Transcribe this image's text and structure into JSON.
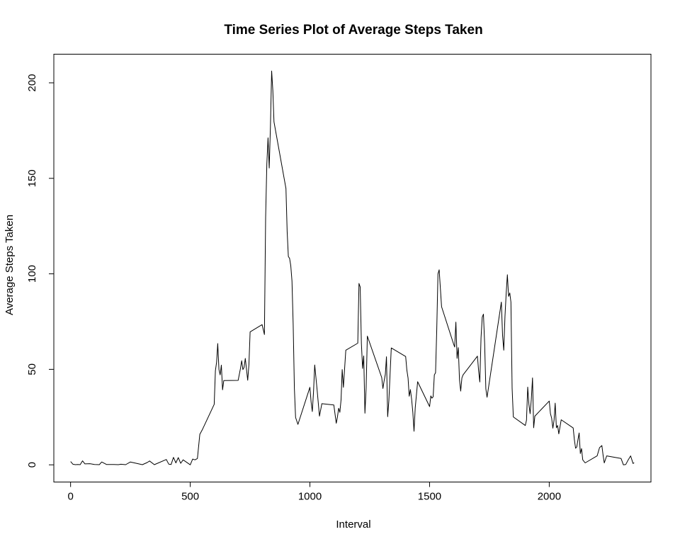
{
  "chart_data": {
    "type": "line",
    "title": "Time Series Plot of Average Steps Taken",
    "xlabel": "Interval",
    "ylabel": "Average Steps Taken",
    "xlim": [
      -70,
      2425
    ],
    "ylim": [
      -9,
      215
    ],
    "x_ticks": [
      0,
      500,
      1000,
      1500,
      2000
    ],
    "y_ticks": [
      0,
      50,
      100,
      150,
      200
    ],
    "grid": false,
    "series": [
      {
        "color": "#000000",
        "x": [
          0,
          10,
          20,
          30,
          40,
          50,
          60,
          80,
          100,
          120,
          130,
          150,
          180,
          200,
          210,
          230,
          250,
          300,
          320,
          330,
          350,
          400,
          410,
          420,
          430,
          440,
          450,
          460,
          470,
          500,
          510,
          520,
          530,
          540,
          550,
          600,
          605,
          610,
          615,
          620,
          625,
          630,
          635,
          640,
          700,
          710,
          715,
          720,
          725,
          730,
          740,
          745,
          750,
          800,
          810,
          815,
          820,
          825,
          830,
          835,
          840,
          845,
          850,
          900,
          905,
          910,
          915,
          920,
          925,
          930,
          935,
          940,
          950,
          1000,
          1005,
          1010,
          1015,
          1020,
          1030,
          1040,
          1050,
          1100,
          1110,
          1115,
          1120,
          1125,
          1130,
          1135,
          1140,
          1150,
          1200,
          1205,
          1210,
          1215,
          1220,
          1225,
          1230,
          1235,
          1240,
          1300,
          1305,
          1310,
          1315,
          1320,
          1325,
          1330,
          1335,
          1340,
          1400,
          1405,
          1410,
          1415,
          1420,
          1425,
          1430,
          1435,
          1440,
          1450,
          1500,
          1505,
          1510,
          1515,
          1520,
          1525,
          1530,
          1535,
          1540,
          1550,
          1600,
          1605,
          1610,
          1615,
          1620,
          1625,
          1630,
          1635,
          1640,
          1700,
          1705,
          1710,
          1715,
          1720,
          1725,
          1730,
          1735,
          1740,
          1800,
          1805,
          1810,
          1815,
          1820,
          1825,
          1830,
          1835,
          1840,
          1845,
          1850,
          1900,
          1905,
          1910,
          1915,
          1920,
          1925,
          1930,
          1935,
          1940,
          2000,
          2005,
          2010,
          2015,
          2020,
          2025,
          2030,
          2035,
          2040,
          2050,
          2100,
          2105,
          2110,
          2115,
          2120,
          2125,
          2130,
          2135,
          2140,
          2150,
          2200,
          2210,
          2220,
          2225,
          2230,
          2240,
          2300,
          2310,
          2320,
          2330,
          2340,
          2350,
          2355
        ],
        "y": [
          1.7,
          0.3,
          0.1,
          0.2,
          0.1,
          2.1,
          0.5,
          0.6,
          0.2,
          0.1,
          1.5,
          0.2,
          0.2,
          0.1,
          0.3,
          0.1,
          1.5,
          0.1,
          1.2,
          2.0,
          0.1,
          2.8,
          0.4,
          0.2,
          3.9,
          1.0,
          3.8,
          0.8,
          2.6,
          0.0,
          3.0,
          2.6,
          3.3,
          16.0,
          18.3,
          31.7,
          49.3,
          53.8,
          63.5,
          49.9,
          47.1,
          52.2,
          39.3,
          44.1,
          44.2,
          50.5,
          54.5,
          49.9,
          51.0,
          55.7,
          44.3,
          52.3,
          69.6,
          73.4,
          68.2,
          129.4,
          157.5,
          171.2,
          155.4,
          177.3,
          206.2,
          195.9,
          179.6,
          144.7,
          122.1,
          109.1,
          108.1,
          104.3,
          96.3,
          73.5,
          40.0,
          24.8,
          21.2,
          40.6,
          32.9,
          27.9,
          38.0,
          52.3,
          39.2,
          25.5,
          32.0,
          31.3,
          21.8,
          25.1,
          29.6,
          27.5,
          34.1,
          49.9,
          40.6,
          60.0,
          63.7,
          95.0,
          93.1,
          63.5,
          50.5,
          57.0,
          27.0,
          40.3,
          67.4,
          45.7,
          40.0,
          44.0,
          47.4,
          56.6,
          25.2,
          33.6,
          47.6,
          61.2,
          56.7,
          49.6,
          45.4,
          35.9,
          39.4,
          34.4,
          27.6,
          17.6,
          29.8,
          43.5,
          30.5,
          36.1,
          34.9,
          35.6,
          47.1,
          48.2,
          71.0,
          100.0,
          102.1,
          82.8,
          63.3,
          61.7,
          74.7,
          55.7,
          61.4,
          44.5,
          38.6,
          45.5,
          47.1,
          56.9,
          49.3,
          43.4,
          66.5,
          77.3,
          78.9,
          63.6,
          39.8,
          35.4,
          85.2,
          67.8,
          60.0,
          77.6,
          89.7,
          99.5,
          88.2,
          90.0,
          85.2,
          40.1,
          25.1,
          20.6,
          23.4,
          40.7,
          31.7,
          26.8,
          34.3,
          45.5,
          19.4,
          25.5,
          33.4,
          26.8,
          24.4,
          19.2,
          23.4,
          32.3,
          19.4,
          20.6,
          16.2,
          23.6,
          19.3,
          13.1,
          8.7,
          9.4,
          13.1,
          16.7,
          5.9,
          8.5,
          2.6,
          1.0,
          4.7,
          9.0,
          10.1,
          5.1,
          1.0,
          4.7,
          3.3,
          0.0,
          0.2,
          2.6,
          4.7,
          0.7,
          1.1
        ]
      }
    ]
  }
}
